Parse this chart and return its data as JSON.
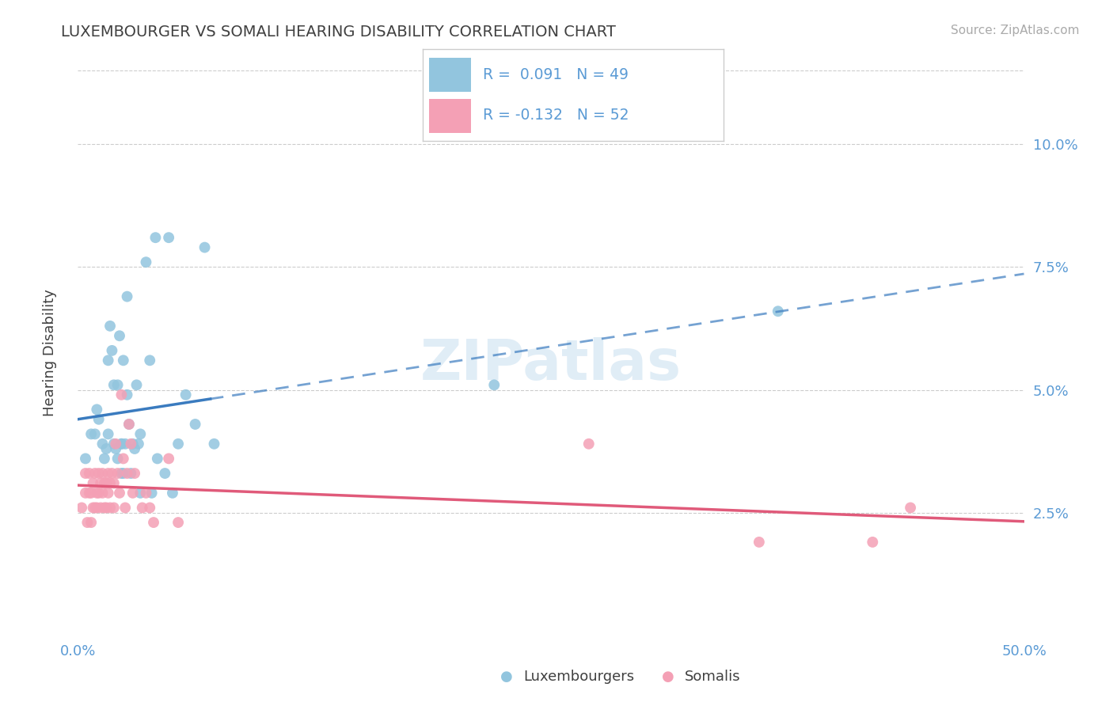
{
  "title": "LUXEMBOURGER VS SOMALI HEARING DISABILITY CORRELATION CHART",
  "source": "Source: ZipAtlas.com",
  "ylabel": "Hearing Disability",
  "watermark": "ZIPatlas",
  "xlim": [
    0.0,
    0.5
  ],
  "ylim": [
    0.0,
    0.115
  ],
  "yticks": [
    0.025,
    0.05,
    0.075,
    0.1
  ],
  "ytick_labels": [
    "2.5%",
    "5.0%",
    "7.5%",
    "10.0%"
  ],
  "blue_color": "#92c5de",
  "pink_color": "#f4a0b5",
  "line_blue": "#3a7bbf",
  "line_pink": "#e05a7a",
  "background_color": "#ffffff",
  "grid_color": "#cccccc",
  "title_color": "#404040",
  "axis_label_color": "#5b9bd5",
  "tick_label_color": "#5b9bd5",
  "lux_scatter_x": [
    0.004,
    0.007,
    0.009,
    0.01,
    0.011,
    0.013,
    0.014,
    0.015,
    0.016,
    0.016,
    0.017,
    0.018,
    0.019,
    0.019,
    0.02,
    0.021,
    0.021,
    0.022,
    0.023,
    0.023,
    0.023,
    0.024,
    0.024,
    0.025,
    0.026,
    0.026,
    0.027,
    0.028,
    0.029,
    0.03,
    0.031,
    0.032,
    0.033,
    0.033,
    0.036,
    0.038,
    0.039,
    0.041,
    0.042,
    0.046,
    0.048,
    0.05,
    0.053,
    0.057,
    0.062,
    0.067,
    0.072,
    0.22,
    0.37
  ],
  "lux_scatter_y": [
    0.036,
    0.041,
    0.041,
    0.046,
    0.044,
    0.039,
    0.036,
    0.038,
    0.041,
    0.056,
    0.063,
    0.058,
    0.039,
    0.051,
    0.038,
    0.036,
    0.051,
    0.061,
    0.039,
    0.033,
    0.039,
    0.056,
    0.033,
    0.039,
    0.049,
    0.069,
    0.043,
    0.033,
    0.039,
    0.038,
    0.051,
    0.039,
    0.029,
    0.041,
    0.076,
    0.056,
    0.029,
    0.081,
    0.036,
    0.033,
    0.081,
    0.029,
    0.039,
    0.049,
    0.043,
    0.079,
    0.039,
    0.051,
    0.066
  ],
  "som_scatter_x": [
    0.002,
    0.004,
    0.004,
    0.005,
    0.006,
    0.006,
    0.007,
    0.007,
    0.008,
    0.008,
    0.009,
    0.009,
    0.01,
    0.01,
    0.011,
    0.011,
    0.012,
    0.012,
    0.013,
    0.013,
    0.014,
    0.014,
    0.015,
    0.015,
    0.016,
    0.016,
    0.017,
    0.017,
    0.018,
    0.019,
    0.019,
    0.02,
    0.021,
    0.022,
    0.023,
    0.024,
    0.025,
    0.026,
    0.027,
    0.028,
    0.029,
    0.03,
    0.034,
    0.036,
    0.038,
    0.04,
    0.048,
    0.053,
    0.27,
    0.36,
    0.42,
    0.44
  ],
  "som_scatter_y": [
    0.026,
    0.029,
    0.033,
    0.023,
    0.029,
    0.033,
    0.029,
    0.023,
    0.026,
    0.031,
    0.026,
    0.033,
    0.029,
    0.026,
    0.033,
    0.029,
    0.031,
    0.026,
    0.033,
    0.029,
    0.026,
    0.031,
    0.026,
    0.031,
    0.033,
    0.029,
    0.026,
    0.031,
    0.033,
    0.026,
    0.031,
    0.039,
    0.033,
    0.029,
    0.049,
    0.036,
    0.026,
    0.033,
    0.043,
    0.039,
    0.029,
    0.033,
    0.026,
    0.029,
    0.026,
    0.023,
    0.036,
    0.023,
    0.039,
    0.019,
    0.019,
    0.026
  ],
  "lux_line_x0": 0.0,
  "lux_line_x1": 0.07,
  "lux_line_xdash0": 0.07,
  "lux_line_xdash1": 0.5,
  "som_line_x0": 0.0,
  "som_line_x1": 0.5
}
